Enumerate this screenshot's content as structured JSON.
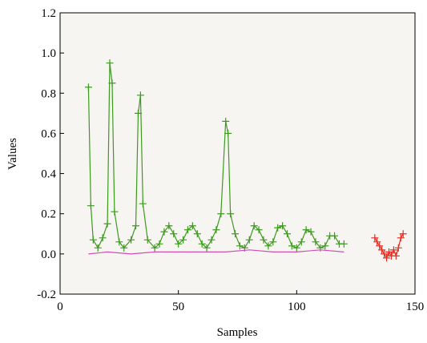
{
  "chart_data": {
    "type": "line",
    "title": "",
    "xlabel": "Samples",
    "ylabel": "Values",
    "xlim": [
      0,
      150
    ],
    "ylim": [
      -0.2,
      1.2
    ],
    "x_ticks": [
      "0",
      "50",
      "100",
      "150"
    ],
    "y_ticks": [
      "-0.2",
      "0.0",
      "0.2",
      "0.4",
      "0.6",
      "0.8",
      "1.0",
      "1.2"
    ],
    "grid": false,
    "legend": "none",
    "series": [
      {
        "color": "#3c9a1e",
        "marker": "+",
        "x": [
          12,
          13,
          14,
          16,
          18,
          20,
          21,
          22,
          23,
          25,
          27,
          30,
          32,
          33,
          34,
          35,
          37,
          40,
          42,
          44,
          46,
          48,
          50,
          52,
          54,
          56,
          58,
          60,
          62,
          64,
          66,
          68,
          70,
          71,
          72,
          74,
          76,
          78,
          80,
          82,
          84,
          86,
          88,
          90,
          92,
          94,
          96,
          98,
          100,
          102,
          104,
          106,
          108,
          110,
          112,
          114,
          116,
          118,
          120
        ],
        "y": [
          0.83,
          0.24,
          0.07,
          0.03,
          0.08,
          0.15,
          0.95,
          0.85,
          0.21,
          0.06,
          0.03,
          0.07,
          0.14,
          0.7,
          0.79,
          0.25,
          0.07,
          0.03,
          0.05,
          0.11,
          0.14,
          0.1,
          0.05,
          0.07,
          0.12,
          0.14,
          0.1,
          0.05,
          0.03,
          0.07,
          0.12,
          0.2,
          0.66,
          0.6,
          0.2,
          0.1,
          0.04,
          0.03,
          0.07,
          0.14,
          0.12,
          0.07,
          0.04,
          0.06,
          0.13,
          0.14,
          0.1,
          0.04,
          0.03,
          0.06,
          0.12,
          0.11,
          0.06,
          0.03,
          0.04,
          0.09,
          0.09,
          0.05,
          0.05
        ]
      },
      {
        "color": "#cc4fb5",
        "marker": "none",
        "x": [
          12,
          20,
          30,
          40,
          50,
          60,
          70,
          80,
          90,
          100,
          110,
          120
        ],
        "y": [
          0.0,
          0.01,
          0.0,
          0.01,
          0.01,
          0.01,
          0.01,
          0.02,
          0.01,
          0.01,
          0.02,
          0.01
        ]
      },
      {
        "color": "#ee2a1f",
        "marker": "+",
        "x": [
          133,
          134,
          135,
          136,
          137,
          138,
          139,
          140,
          141,
          142,
          143,
          144,
          145
        ],
        "y": [
          0.08,
          0.06,
          0.04,
          0.02,
          0.0,
          -0.02,
          0.01,
          -0.01,
          0.02,
          -0.01,
          0.03,
          0.08,
          0.1
        ]
      }
    ]
  }
}
